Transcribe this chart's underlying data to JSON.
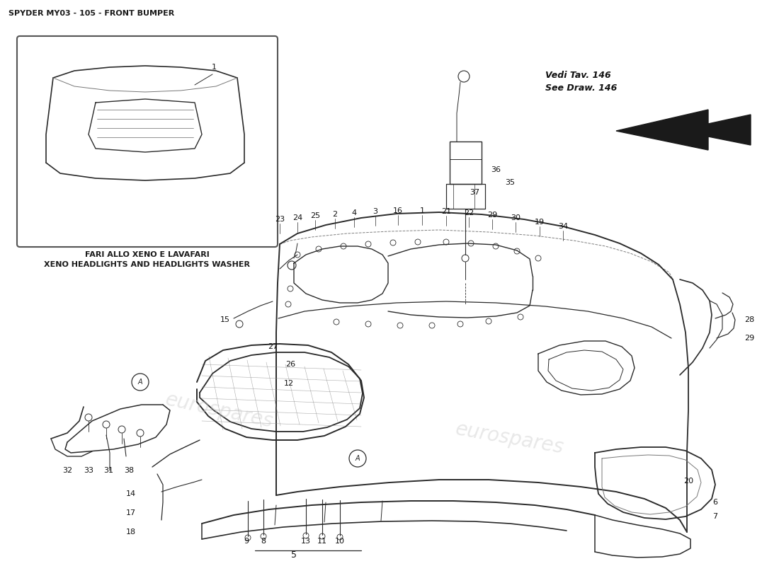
{
  "title": "SPYDER MY03 - 105 - FRONT BUMPER",
  "bg_color": "#ffffff",
  "line_color": "#2a2a2a",
  "inset_label_it": "FARI ALLO XENO E LAVAFARI",
  "inset_label_en": "XENO HEADLIGHTS AND HEADLIGHTS WASHER",
  "vedi_line1": "Vedi Tav. 146",
  "vedi_line2": "See Draw. 146",
  "watermark": "eurospares"
}
